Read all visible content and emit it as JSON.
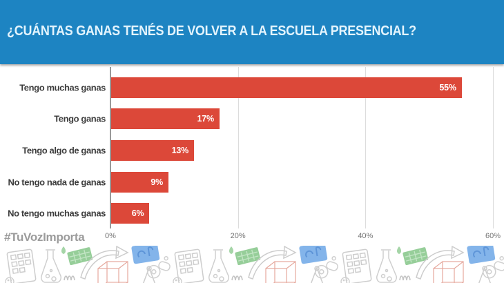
{
  "header": {
    "title": "¿CUÁNTAS GANAS TENÉS DE VOLVER A LA ESCUELA PRESENCIAL?",
    "background_color": "#1d84c2",
    "text_color": "#e3f4fd"
  },
  "chart_data": {
    "type": "bar",
    "orientation": "horizontal",
    "categories": [
      "Tengo muchas ganas",
      "Tengo ganas",
      "Tengo algo de ganas",
      "No tengo nada de ganas",
      "No tengo muchas ganas"
    ],
    "values": [
      55,
      17,
      13,
      9,
      6
    ],
    "value_labels": [
      "55%",
      "17%",
      "13%",
      "9%",
      "6%"
    ],
    "xlim": [
      0,
      60
    ],
    "xticks": [
      "0%",
      "20%",
      "40%",
      "60%"
    ],
    "bar_color": "#dc4839",
    "grid": "vertical-light",
    "legend": "none"
  },
  "footer": {
    "hashtag": "#TuVozImporta",
    "doodle_icons": [
      "calculator-icon",
      "flask-icon",
      "drop-icon",
      "eraser-icon",
      "arrow-icon",
      "cube-icon",
      "card-icon",
      "compass-icon",
      "whistle-icon",
      "scribble-icon",
      "face-circle-icon"
    ]
  }
}
